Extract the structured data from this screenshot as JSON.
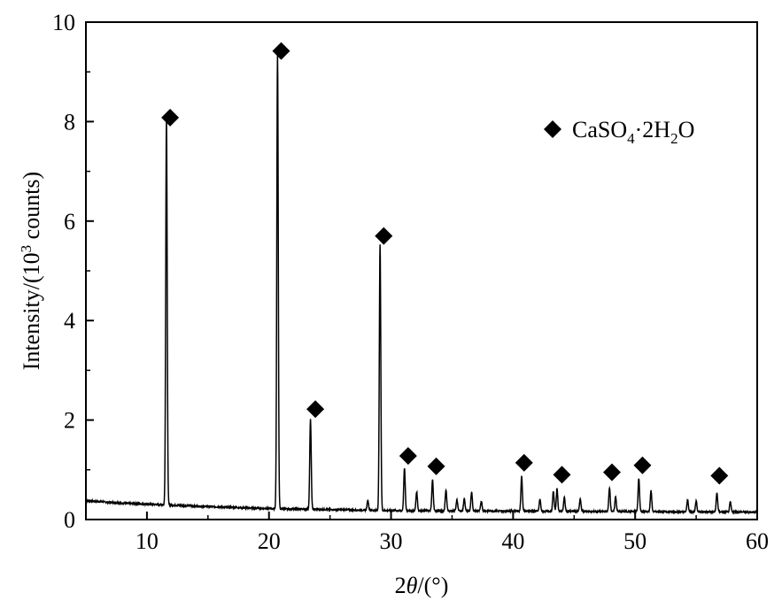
{
  "chart_data": {
    "type": "line",
    "title": "",
    "xlabel_parts": {
      "symbol": "2",
      "var": "θ",
      "unit": "/(°)"
    },
    "ylabel_parts": {
      "pre": "Intensity/(10",
      "sup": "3",
      "post": " counts)"
    },
    "xlim": [
      5,
      60
    ],
    "ylim": [
      0,
      10
    ],
    "x_ticks": [
      10,
      20,
      30,
      40,
      50,
      60
    ],
    "y_ticks": [
      0,
      2,
      4,
      6,
      8,
      10
    ],
    "x_tick_labels": [
      "10",
      "20",
      "30",
      "40",
      "50",
      "60"
    ],
    "y_tick_labels": [
      "0",
      "2",
      "4",
      "6",
      "8",
      "10"
    ],
    "grid": false,
    "legend": {
      "placement": "top-right",
      "label_parts": {
        "a": "CaSO",
        "sub1": "4",
        "b": "·2H",
        "sub2": "2",
        "c": "O"
      },
      "marker": "diamond"
    },
    "series": [
      {
        "background": [
          [
            5,
            0.38
          ],
          [
            8,
            0.33
          ],
          [
            11,
            0.3
          ],
          [
            15,
            0.26
          ],
          [
            20,
            0.22
          ],
          [
            25,
            0.2
          ],
          [
            30,
            0.18
          ],
          [
            40,
            0.17
          ],
          [
            50,
            0.16
          ],
          [
            60,
            0.15
          ]
        ],
        "peaks": [
          {
            "x": 11.6,
            "height": 7.8
          },
          {
            "x": 20.7,
            "height": 9.15
          },
          {
            "x": 23.4,
            "height": 1.8
          },
          {
            "x": 28.1,
            "height": 0.2
          },
          {
            "x": 29.1,
            "height": 5.35
          },
          {
            "x": 31.1,
            "height": 0.85
          },
          {
            "x": 32.1,
            "height": 0.38
          },
          {
            "x": 33.4,
            "height": 0.62
          },
          {
            "x": 34.5,
            "height": 0.42
          },
          {
            "x": 35.4,
            "height": 0.22
          },
          {
            "x": 36.0,
            "height": 0.24
          },
          {
            "x": 36.6,
            "height": 0.38
          },
          {
            "x": 37.4,
            "height": 0.2
          },
          {
            "x": 40.7,
            "height": 0.7
          },
          {
            "x": 42.2,
            "height": 0.24
          },
          {
            "x": 43.3,
            "height": 0.4
          },
          {
            "x": 43.6,
            "height": 0.45
          },
          {
            "x": 44.2,
            "height": 0.28
          },
          {
            "x": 45.5,
            "height": 0.25
          },
          {
            "x": 47.9,
            "height": 0.48
          },
          {
            "x": 48.4,
            "height": 0.3
          },
          {
            "x": 50.3,
            "height": 0.67
          },
          {
            "x": 51.3,
            "height": 0.42
          },
          {
            "x": 54.3,
            "height": 0.24
          },
          {
            "x": 55.0,
            "height": 0.22
          },
          {
            "x": 56.7,
            "height": 0.38
          },
          {
            "x": 57.8,
            "height": 0.2
          }
        ]
      }
    ],
    "markers": [
      {
        "x": 11.9,
        "y": 8.08
      },
      {
        "x": 21.0,
        "y": 9.42
      },
      {
        "x": 23.8,
        "y": 2.22
      },
      {
        "x": 29.4,
        "y": 5.7
      },
      {
        "x": 31.4,
        "y": 1.28
      },
      {
        "x": 33.7,
        "y": 1.07
      },
      {
        "x": 40.9,
        "y": 1.14
      },
      {
        "x": 44.0,
        "y": 0.9
      },
      {
        "x": 48.1,
        "y": 0.95
      },
      {
        "x": 50.6,
        "y": 1.09
      },
      {
        "x": 56.9,
        "y": 0.88
      }
    ],
    "style": {
      "line_color": "#000000",
      "marker_color": "#000000",
      "background": "#ffffff"
    }
  }
}
